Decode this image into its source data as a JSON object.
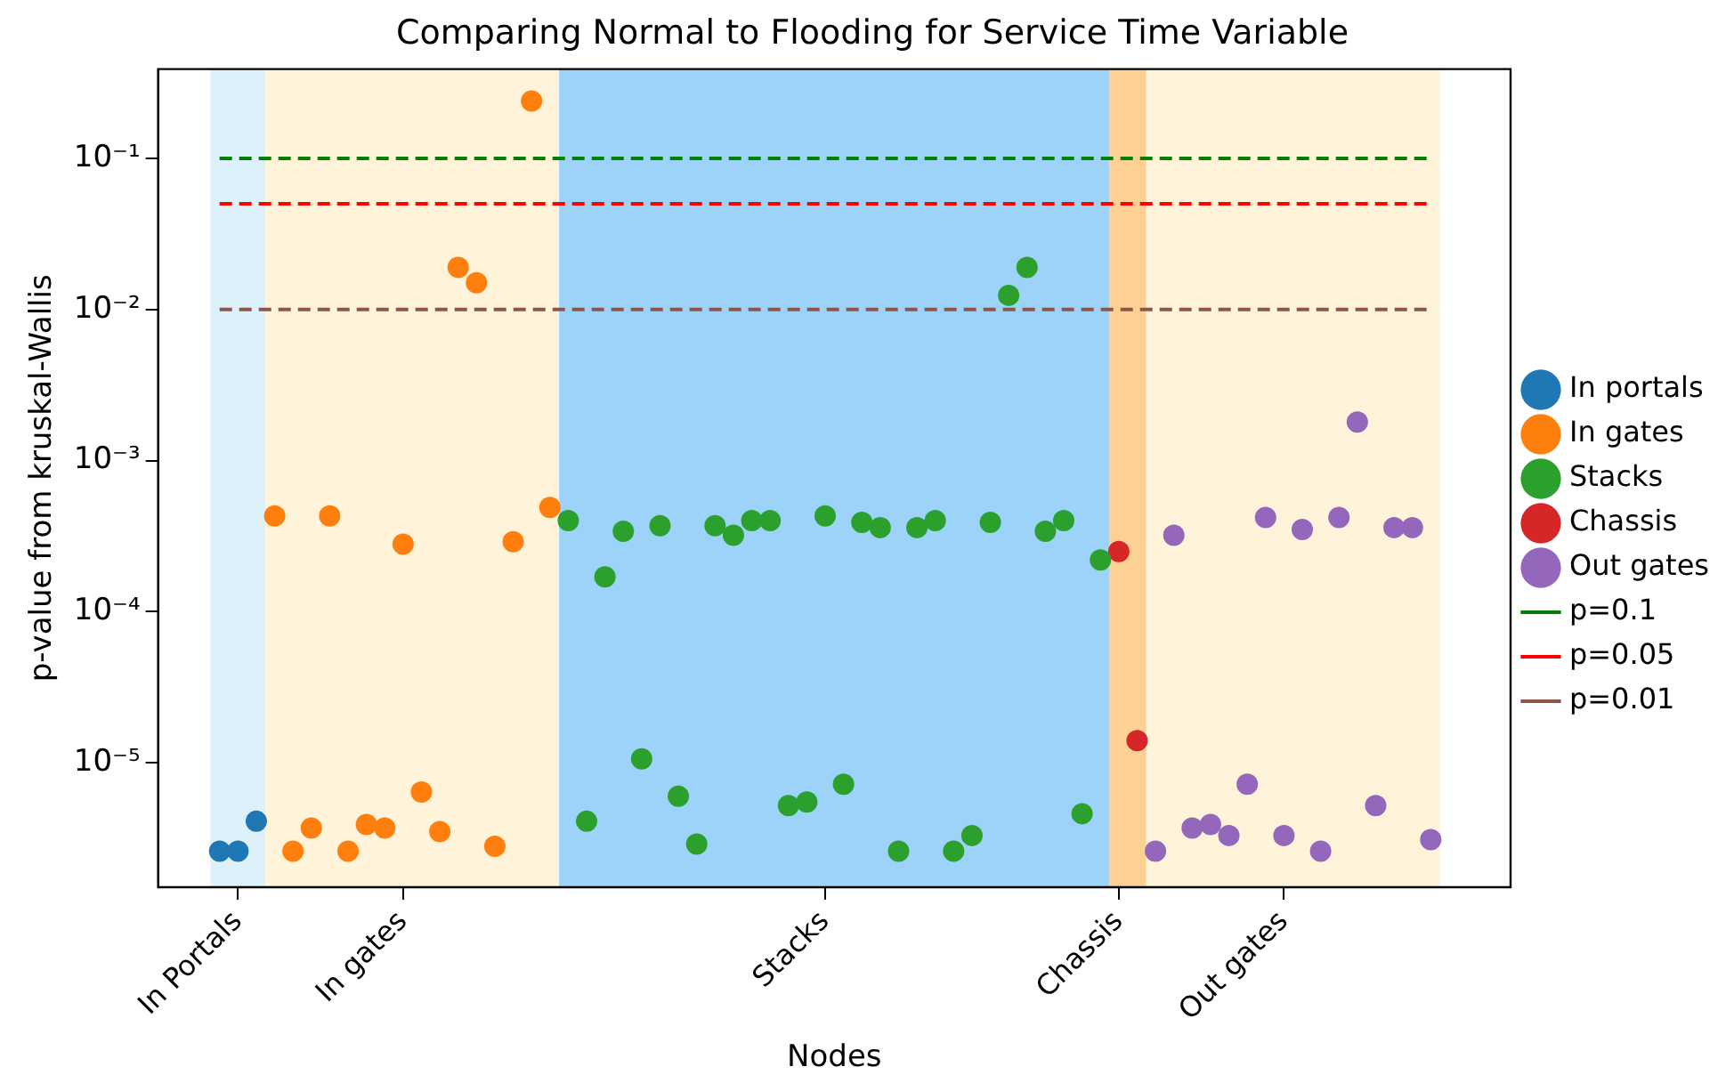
{
  "chart_data": {
    "type": "scatter",
    "title": "Comparing Normal to Flooding for Service Time Variable",
    "xlabel": "Nodes",
    "ylabel": "p-value from kruskal-Wallis",
    "log": "y",
    "grid": false,
    "legend": "right",
    "marker": "circle",
    "categories": [
      null,
      "In Portals",
      null,
      null,
      null,
      null,
      null,
      null,
      null,
      null,
      "In gates",
      null,
      null,
      null,
      null,
      null,
      null,
      null,
      null,
      null,
      null,
      null,
      null,
      null,
      null,
      null,
      null,
      null,
      null,
      null,
      null,
      null,
      null,
      "Stacks",
      null,
      null,
      null,
      null,
      null,
      null,
      null,
      null,
      null,
      null,
      null,
      null,
      null,
      null,
      null,
      "Chassis",
      null,
      null,
      null,
      null,
      null,
      null,
      null,
      null,
      "Out gates",
      null,
      null,
      null,
      null,
      null,
      null,
      null,
      null
    ],
    "ylim": [
      1.5e-06,
      0.39
    ],
    "yticks": [
      {
        "value": 1e-05,
        "label": "10⁻⁵"
      },
      {
        "value": 0.0001,
        "label": "10⁻⁴"
      },
      {
        "value": 0.001,
        "label": "10⁻³"
      },
      {
        "value": 0.01,
        "label": "10⁻²"
      },
      {
        "value": 0.1,
        "label": "10⁻¹"
      }
    ],
    "series": [
      {
        "name": "In portals",
        "color": "#1f77b4",
        "values": [
          2.6e-06,
          2.6e-06,
          4.1e-06,
          null,
          null,
          null,
          null,
          null,
          null,
          null,
          null,
          null,
          null,
          null,
          null,
          null,
          null,
          null,
          null,
          null,
          null,
          null,
          null,
          null,
          null,
          null,
          null,
          null,
          null,
          null,
          null,
          null,
          null,
          null,
          null,
          null,
          null,
          null,
          null,
          null,
          null,
          null,
          null,
          null,
          null,
          null,
          null,
          null,
          null,
          null,
          null,
          null,
          null,
          null,
          null,
          null,
          null,
          null,
          null,
          null,
          null,
          null,
          null,
          null,
          null,
          null,
          null
        ]
      },
      {
        "name": "In gates",
        "color": "#ff7f0e",
        "values": [
          null,
          null,
          null,
          0.00043,
          2.6e-06,
          3.7e-06,
          0.00043,
          2.6e-06,
          3.9e-06,
          3.7e-06,
          0.00028,
          6.4e-06,
          3.5e-06,
          0.019,
          0.015,
          2.8e-06,
          0.00029,
          0.24,
          0.00049,
          null,
          null,
          null,
          null,
          null,
          null,
          null,
          null,
          null,
          null,
          null,
          null,
          null,
          null,
          null,
          null,
          null,
          null,
          null,
          null,
          null,
          null,
          null,
          null,
          null,
          null,
          null,
          null,
          null,
          null,
          null,
          null,
          null,
          null,
          null,
          null,
          null,
          null,
          null,
          null,
          null,
          null,
          null,
          null,
          null,
          null,
          null,
          null
        ]
      },
      {
        "name": "Stacks",
        "color": "#2ca02c",
        "values": [
          null,
          null,
          null,
          null,
          null,
          null,
          null,
          null,
          null,
          null,
          null,
          null,
          null,
          null,
          null,
          null,
          null,
          null,
          null,
          0.0004,
          4.1e-06,
          0.00017,
          0.00034,
          1.06e-05,
          0.00037,
          6e-06,
          2.9e-06,
          0.00037,
          0.00032,
          0.0004,
          0.0004,
          5.2e-06,
          5.5e-06,
          0.00043,
          7.2e-06,
          0.00039,
          0.00036,
          2.6e-06,
          0.00036,
          0.0004,
          2.6e-06,
          3.3e-06,
          0.00039,
          0.0124,
          0.019,
          0.00034,
          0.0004,
          4.6e-06,
          0.00022,
          null,
          null,
          null,
          null,
          null,
          null,
          null,
          null,
          null,
          null,
          null,
          null,
          null,
          null,
          null,
          null,
          null,
          null
        ]
      },
      {
        "name": "Chassis",
        "color": "#d62728",
        "values": [
          null,
          null,
          null,
          null,
          null,
          null,
          null,
          null,
          null,
          null,
          null,
          null,
          null,
          null,
          null,
          null,
          null,
          null,
          null,
          null,
          null,
          null,
          null,
          null,
          null,
          null,
          null,
          null,
          null,
          null,
          null,
          null,
          null,
          null,
          null,
          null,
          null,
          null,
          null,
          null,
          null,
          null,
          null,
          null,
          null,
          null,
          null,
          null,
          null,
          0.00025,
          1.4e-05,
          null,
          null,
          null,
          null,
          null,
          null,
          null,
          null,
          null,
          null,
          null,
          null,
          null,
          null,
          null,
          null
        ]
      },
      {
        "name": "Out gates",
        "color": "#9467bd",
        "values": [
          null,
          null,
          null,
          null,
          null,
          null,
          null,
          null,
          null,
          null,
          null,
          null,
          null,
          null,
          null,
          null,
          null,
          null,
          null,
          null,
          null,
          null,
          null,
          null,
          null,
          null,
          null,
          null,
          null,
          null,
          null,
          null,
          null,
          null,
          null,
          null,
          null,
          null,
          null,
          null,
          null,
          null,
          null,
          null,
          null,
          null,
          null,
          null,
          null,
          null,
          null,
          2.6e-06,
          0.00032,
          3.7e-06,
          3.9e-06,
          3.3e-06,
          7.2e-06,
          0.00042,
          3.3e-06,
          0.00035,
          2.6e-06,
          0.00042,
          0.0018,
          5.2e-06,
          0.00036,
          0.00036,
          3.1e-06
        ]
      },
      {
        "name": "p=0.1",
        "type": "line",
        "line_style": "dashed",
        "marker": "none",
        "color": "#008000",
        "values": [
          0.1,
          0.1,
          0.1,
          0.1,
          0.1,
          0.1,
          0.1,
          0.1,
          0.1,
          0.1,
          0.1,
          0.1,
          0.1,
          0.1,
          0.1,
          0.1,
          0.1,
          0.1,
          0.1,
          0.1,
          0.1,
          0.1,
          0.1,
          0.1,
          0.1,
          0.1,
          0.1,
          0.1,
          0.1,
          0.1,
          0.1,
          0.1,
          0.1,
          0.1,
          0.1,
          0.1,
          0.1,
          0.1,
          0.1,
          0.1,
          0.1,
          0.1,
          0.1,
          0.1,
          0.1,
          0.1,
          0.1,
          0.1,
          0.1,
          0.1,
          0.1,
          0.1,
          0.1,
          0.1,
          0.1,
          0.1,
          0.1,
          0.1,
          0.1,
          0.1,
          0.1,
          0.1,
          0.1,
          0.1,
          0.1,
          0.1,
          0.1
        ]
      },
      {
        "name": "p=0.05",
        "type": "line",
        "line_style": "dashed",
        "marker": "none",
        "color": "#ff0000",
        "values": [
          0.05,
          0.05,
          0.05,
          0.05,
          0.05,
          0.05,
          0.05,
          0.05,
          0.05,
          0.05,
          0.05,
          0.05,
          0.05,
          0.05,
          0.05,
          0.05,
          0.05,
          0.05,
          0.05,
          0.05,
          0.05,
          0.05,
          0.05,
          0.05,
          0.05,
          0.05,
          0.05,
          0.05,
          0.05,
          0.05,
          0.05,
          0.05,
          0.05,
          0.05,
          0.05,
          0.05,
          0.05,
          0.05,
          0.05,
          0.05,
          0.05,
          0.05,
          0.05,
          0.05,
          0.05,
          0.05,
          0.05,
          0.05,
          0.05,
          0.05,
          0.05,
          0.05,
          0.05,
          0.05,
          0.05,
          0.05,
          0.05,
          0.05,
          0.05,
          0.05,
          0.05,
          0.05,
          0.05,
          0.05,
          0.05,
          0.05,
          0.05
        ]
      },
      {
        "name": "p=0.01",
        "type": "line",
        "line_style": "dashed",
        "marker": "none",
        "color": "#8c564b",
        "values": [
          0.01,
          0.01,
          0.01,
          0.01,
          0.01,
          0.01,
          0.01,
          0.01,
          0.01,
          0.01,
          0.01,
          0.01,
          0.01,
          0.01,
          0.01,
          0.01,
          0.01,
          0.01,
          0.01,
          0.01,
          0.01,
          0.01,
          0.01,
          0.01,
          0.01,
          0.01,
          0.01,
          0.01,
          0.01,
          0.01,
          0.01,
          0.01,
          0.01,
          0.01,
          0.01,
          0.01,
          0.01,
          0.01,
          0.01,
          0.01,
          0.01,
          0.01,
          0.01,
          0.01,
          0.01,
          0.01,
          0.01,
          0.01,
          0.01,
          0.01,
          0.01,
          0.01,
          0.01,
          0.01,
          0.01,
          0.01,
          0.01,
          0.01,
          0.01,
          0.01,
          0.01,
          0.01,
          0.01,
          0.01,
          0.01,
          0.01,
          0.01
        ]
      }
    ]
  }
}
